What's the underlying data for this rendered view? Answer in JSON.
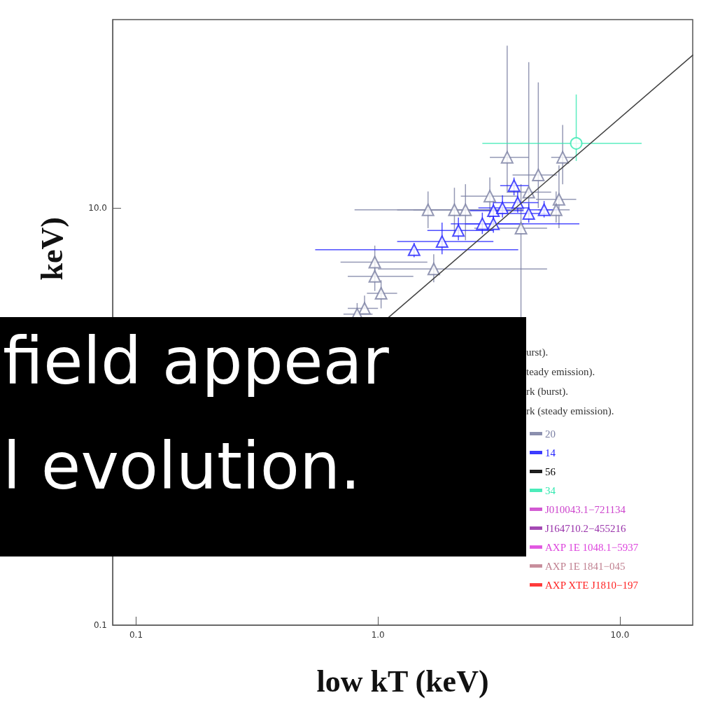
{
  "chart_data": {
    "type": "scatter",
    "subtitle": "field appear\nl evolution.",
    "xlabel": "low kT (keV)",
    "ylabel": "keV)",
    "log": "xy",
    "xlim": [
      0.08,
      20
    ],
    "ylim": [
      0.1,
      80
    ],
    "xticks": [
      {
        "value": 0.1,
        "label": "0.1"
      },
      {
        "value": 1,
        "label": "1.0"
      },
      {
        "value": 10,
        "label": "10.0"
      }
    ],
    "yticks": [
      {
        "value": 0.1,
        "label": "0.1"
      },
      {
        "value": 1,
        "label": null
      },
      {
        "value": 10,
        "label": "10.0"
      }
    ],
    "grid": false,
    "legend": "bottom right",
    "annotations": [
      "urst).",
      "teady emission).",
      "rk (burst).",
      "rk (steady emission)."
    ],
    "series": [
      {
        "name": "20",
        "color": "#7a7fa3",
        "marker": "triangle",
        "x": [
          3.42,
          5.8,
          5.6,
          5.45,
          1.61,
          2.07,
          2.3,
          2.9,
          4.2,
          4.6,
          0.97,
          0.97,
          1.7,
          0.88,
          1.03,
          0.82,
          3.9
        ],
        "values": [
          17.5,
          17.5,
          11,
          9.8,
          9.8,
          9.8,
          9.8,
          11.4,
          11.9,
          14.4,
          5.5,
          4.7,
          5.1,
          3.3,
          3.9,
          3.1,
          8.0
        ],
        "xerrors": [
          [
            2.9,
            4.2
          ],
          [
            5.2,
            6.5
          ],
          [
            4.5,
            6.6
          ],
          [
            4.6,
            6.2
          ],
          [
            0.8,
            3.5
          ],
          [
            1.2,
            3.2
          ],
          [
            1.4,
            4.0
          ],
          [
            2.2,
            3.8
          ],
          [
            3.4,
            5.2
          ],
          [
            3.6,
            5.5
          ],
          [
            0.7,
            1.6
          ],
          [
            0.75,
            1.4
          ],
          [
            1.0,
            5.0
          ],
          [
            0.75,
            1.0
          ],
          [
            0.9,
            1.2
          ],
          [
            0.72,
            0.95
          ],
          [
            2.5,
            5.0
          ]
        ],
        "errors": [
          [
            12,
            60
          ],
          [
            13,
            25
          ],
          [
            8,
            16
          ],
          [
            8.5,
            12
          ],
          [
            8,
            12
          ],
          [
            7.5,
            12.5
          ],
          [
            7,
            13
          ],
          [
            9,
            14
          ],
          [
            9,
            50
          ],
          [
            10,
            40
          ],
          [
            4.6,
            6.6
          ],
          [
            4.0,
            5.5
          ],
          [
            4.4,
            6.0
          ],
          [
            3.3,
            3.8
          ],
          [
            3.3,
            4.5
          ],
          [
            3.1,
            3.5
          ],
          [
            3.0,
            13
          ]
        ]
      },
      {
        "name": "14",
        "color": "#2222ff",
        "marker": "triangle",
        "x": [
          1.41,
          1.84,
          2.15,
          2.7,
          3.0,
          3.27,
          3.65,
          3.78,
          4.2,
          4.86,
          3.0
        ],
        "values": [
          6.3,
          6.9,
          7.8,
          8.4,
          9.7,
          10,
          12.8,
          10.6,
          9.4,
          9.8,
          8.4
        ],
        "xerrors": [
          [
            0.55,
            3.8
          ],
          [
            1.2,
            3.0
          ],
          [
            1.6,
            3.0
          ],
          [
            2.0,
            4.0
          ],
          [
            2.4,
            4.0
          ],
          [
            2.6,
            4.2
          ],
          [
            3.2,
            4.2
          ],
          [
            3.0,
            4.6
          ],
          [
            3.5,
            5.0
          ],
          [
            4.2,
            5.6
          ],
          [
            2.3,
            6.8
          ]
        ],
        "errors": [
          [
            5.8,
            6.8
          ],
          [
            6.0,
            8.5
          ],
          [
            7.0,
            9
          ],
          [
            7.5,
            9.5
          ],
          [
            8.5,
            11
          ],
          [
            9,
            11.5
          ],
          [
            11.5,
            14
          ],
          [
            9.5,
            12
          ],
          [
            8.5,
            10.5
          ],
          [
            9,
            10.8
          ],
          [
            7.6,
            9.2
          ]
        ]
      },
      {
        "name": "56",
        "color": "#000000",
        "marker": "triangle"
      },
      {
        "name": "34",
        "color": "#33e8b0",
        "marker": "circle",
        "x": [
          6.6
        ],
        "values": [
          20.4
        ],
        "xerrors": [
          [
            2.7,
            12.3
          ]
        ],
        "errors": [
          [
            16.8,
            35
          ]
        ]
      },
      {
        "name": "J010043.1−721134",
        "color": "#cc44cc",
        "marker": "circle"
      },
      {
        "name": "J164710.2−455216",
        "color": "#9933aa",
        "marker": "circle"
      },
      {
        "name": "AXP 1E 1048.1−5937",
        "color": "#dd44dd",
        "marker": "circle"
      },
      {
        "name": "AXP 1E 1841−045",
        "color": "#c08090",
        "marker": "circle"
      },
      {
        "name": "AXP XTE J1810−197",
        "color": "#ff2222",
        "marker": "circle"
      },
      {
        "type": "line",
        "color": "#444444",
        "line_style": "solid",
        "marker": "none",
        "x": [
          1.1,
          20
        ],
        "values": [
          2.97,
          54
        ]
      }
    ]
  }
}
